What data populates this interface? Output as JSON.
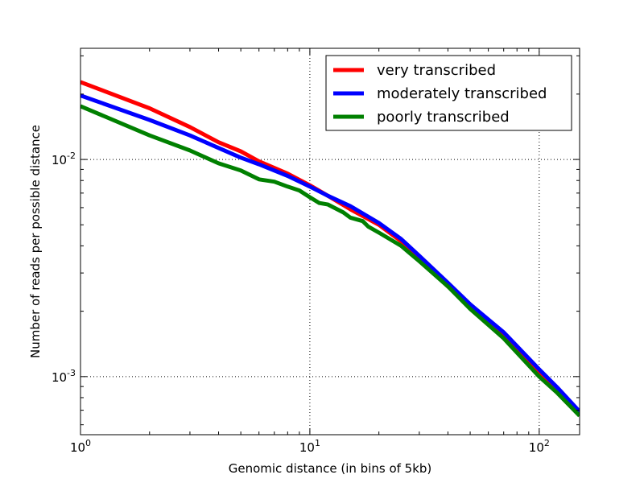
{
  "chart_data": {
    "type": "line",
    "title": "",
    "xlabel": "Genomic distance (in bins of 5kb)",
    "ylabel": "Number of reads per possible distance",
    "xscale": "log",
    "yscale": "log",
    "xlim": [
      1,
      150
    ],
    "ylim": [
      0.00054,
      0.0325
    ],
    "grid": true,
    "legend_position": "top-right",
    "x_ticks": [
      {
        "value": 1,
        "base": "10",
        "exp": "0"
      },
      {
        "value": 10,
        "base": "10",
        "exp": "1"
      },
      {
        "value": 100,
        "base": "10",
        "exp": "2"
      }
    ],
    "y_ticks": [
      {
        "value": 0.001,
        "base": "10",
        "exp": "-3"
      },
      {
        "value": 0.01,
        "base": "10",
        "exp": "-2"
      }
    ],
    "series": [
      {
        "name": "very transcribed",
        "color": "#ff0000",
        "x": [
          1,
          2,
          3,
          4,
          5,
          6,
          8,
          10,
          12,
          15,
          20,
          25,
          30,
          40,
          50,
          70,
          100,
          120,
          150
        ],
        "y": [
          0.0227,
          0.0172,
          0.0141,
          0.012,
          0.0109,
          0.0098,
          0.0086,
          0.0076,
          0.0068,
          0.0059,
          0.005,
          0.0042,
          0.0035,
          0.0026,
          0.0021,
          0.00155,
          0.00105,
          0.00088,
          0.00068
        ]
      },
      {
        "name": "moderately transcribed",
        "color": "#0000ff",
        "x": [
          1,
          2,
          3,
          4,
          5,
          6,
          8,
          10,
          12,
          15,
          20,
          25,
          30,
          40,
          50,
          70,
          100,
          120,
          150
        ],
        "y": [
          0.0197,
          0.0152,
          0.0129,
          0.0113,
          0.0102,
          0.0095,
          0.0084,
          0.0075,
          0.0068,
          0.0061,
          0.0051,
          0.0043,
          0.0036,
          0.0027,
          0.00215,
          0.0016,
          0.00108,
          0.00089,
          0.00069
        ]
      },
      {
        "name": "poorly transcribed",
        "color": "#008000",
        "x": [
          1,
          2,
          3,
          4,
          5,
          6,
          7,
          8,
          9,
          10,
          11,
          12,
          14,
          15,
          17,
          18,
          20,
          25,
          30,
          40,
          50,
          70,
          100,
          120,
          150
        ],
        "y": [
          0.0176,
          0.0129,
          0.011,
          0.0096,
          0.0089,
          0.0081,
          0.0079,
          0.0075,
          0.0072,
          0.0067,
          0.0063,
          0.0062,
          0.0057,
          0.0054,
          0.0052,
          0.0049,
          0.0046,
          0.004,
          0.0034,
          0.0026,
          0.00205,
          0.0015,
          0.001,
          0.00084,
          0.00066
        ]
      }
    ]
  }
}
